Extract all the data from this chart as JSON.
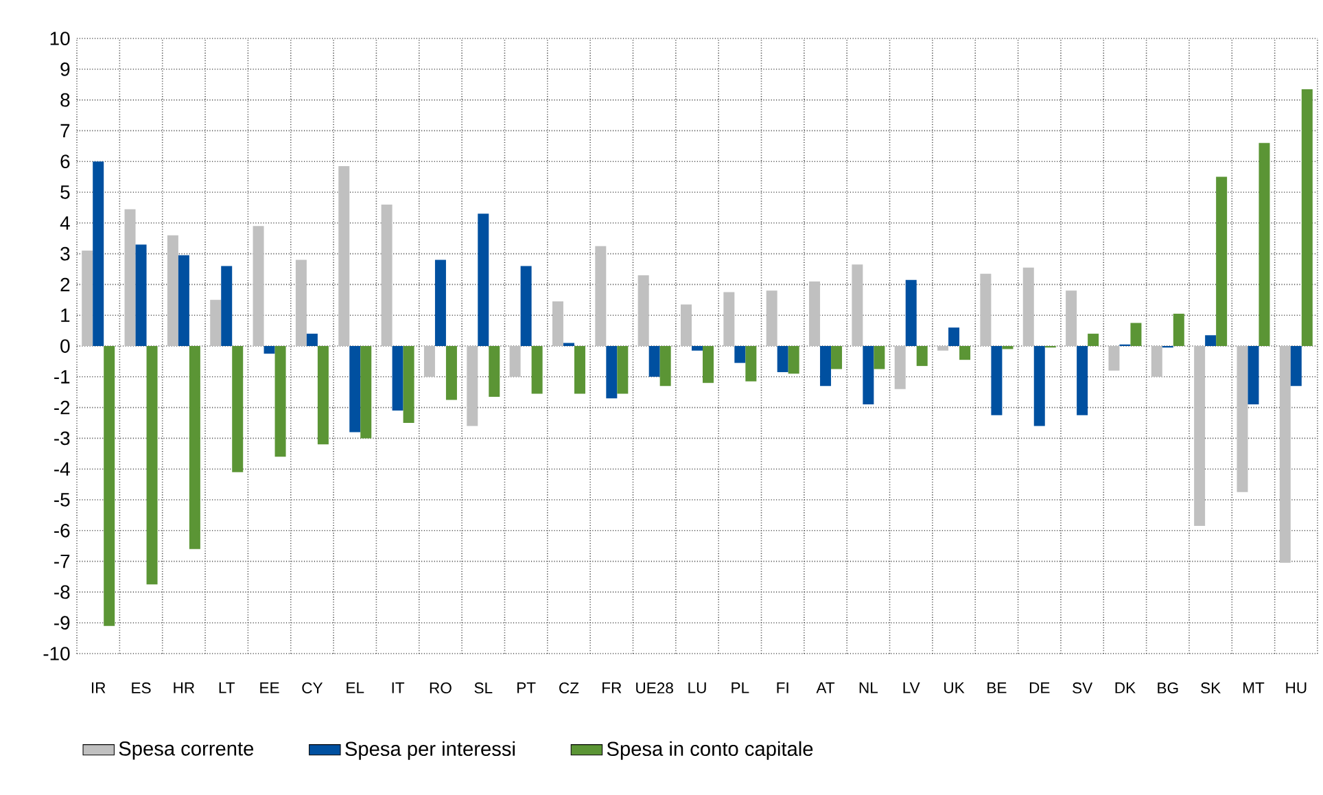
{
  "chart_data": {
    "type": "bar",
    "categories": [
      "IR",
      "ES",
      "HR",
      "LT",
      "EE",
      "CY",
      "EL",
      "IT",
      "RO",
      "SL",
      "PT",
      "CZ",
      "FR",
      "UE28",
      "LU",
      "PL",
      "FI",
      "AT",
      "NL",
      "LV",
      "UK",
      "BE",
      "DE",
      "SV",
      "DK",
      "BG",
      "SK",
      "MT",
      "HU"
    ],
    "series": [
      {
        "name": "Spesa corrente",
        "color": "#c0c0c0",
        "values": [
          3.1,
          4.45,
          3.6,
          1.5,
          3.9,
          2.8,
          5.85,
          4.6,
          -1.0,
          -2.6,
          -1.0,
          1.45,
          3.25,
          2.3,
          1.35,
          1.75,
          1.8,
          2.1,
          2.65,
          -1.4,
          -0.15,
          2.35,
          2.55,
          1.8,
          -0.8,
          -1.0,
          -5.85,
          -4.75,
          -7.05
        ]
      },
      {
        "name": "Spesa per interessi",
        "color": "#0050a0",
        "values": [
          6.0,
          3.3,
          2.95,
          2.6,
          -0.25,
          0.4,
          -2.8,
          -2.1,
          2.8,
          4.3,
          2.6,
          0.1,
          -1.7,
          -1.0,
          -0.15,
          -0.55,
          -0.85,
          -1.3,
          -1.9,
          2.15,
          0.6,
          -2.25,
          -2.6,
          -2.25,
          0.05,
          -0.05,
          0.35,
          -1.9,
          -1.3
        ]
      },
      {
        "name": "Spesa in conto capitale",
        "color": "#5b9535",
        "values": [
          -9.1,
          -7.75,
          -6.6,
          -4.1,
          -3.6,
          -3.2,
          -3.0,
          -2.5,
          -1.75,
          -1.65,
          -1.55,
          -1.55,
          -1.55,
          -1.3,
          -1.2,
          -1.15,
          -0.9,
          -0.75,
          -0.75,
          -0.65,
          -0.45,
          -0.1,
          -0.05,
          0.4,
          0.75,
          1.05,
          5.5,
          6.6,
          8.35
        ]
      }
    ],
    "ylim": [
      -10,
      10
    ],
    "yticks": [
      -10,
      -9,
      -8,
      -7,
      -6,
      -5,
      -4,
      -3,
      -2,
      -1,
      0,
      1,
      2,
      3,
      4,
      5,
      6,
      7,
      8,
      9,
      10
    ],
    "grid": true,
    "legend": "bottom"
  }
}
